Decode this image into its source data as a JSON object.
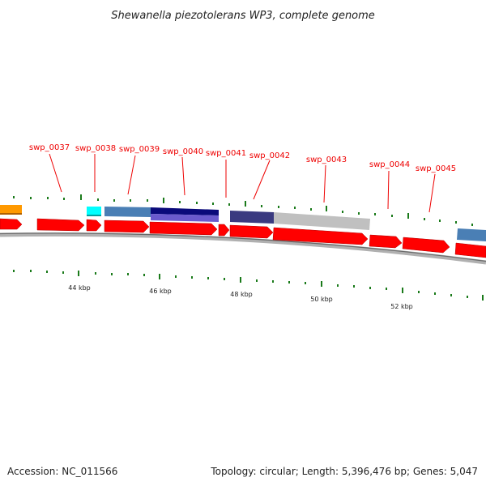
{
  "title": "Shewanella piezotolerans WP3, complete genome",
  "footer": {
    "accession": "Accession: NC_011566",
    "summary": "Topology: circular; Length: 5,396,476 bp; Genes: 5,047"
  },
  "genes": [
    {
      "label": "swp_0037"
    },
    {
      "label": "swp_0038"
    },
    {
      "label": "swp_0039"
    },
    {
      "label": "swp_0040"
    },
    {
      "label": "swp_0041"
    },
    {
      "label": "swp_0042"
    },
    {
      "label": "swp_0043"
    },
    {
      "label": "swp_0044"
    },
    {
      "label": "swp_0045"
    }
  ],
  "scale_labels": [
    "44 kbp",
    "46 kbp",
    "48 kbp",
    "50 kbp",
    "52 kbp"
  ],
  "colors": {
    "gene": "#ff0000",
    "gene_dark": "#b00000",
    "label": "#ee0000",
    "tick": "#1a7a1a",
    "backbone": "#808080",
    "orange": "#ff9900",
    "cyan": "#00ffff",
    "steelblue": "#4a7fb5",
    "navy": "#0a0a7a",
    "slateblue": "#6a5acd",
    "darkslate": "#3a3a80",
    "silver": "#c0c0c0"
  }
}
